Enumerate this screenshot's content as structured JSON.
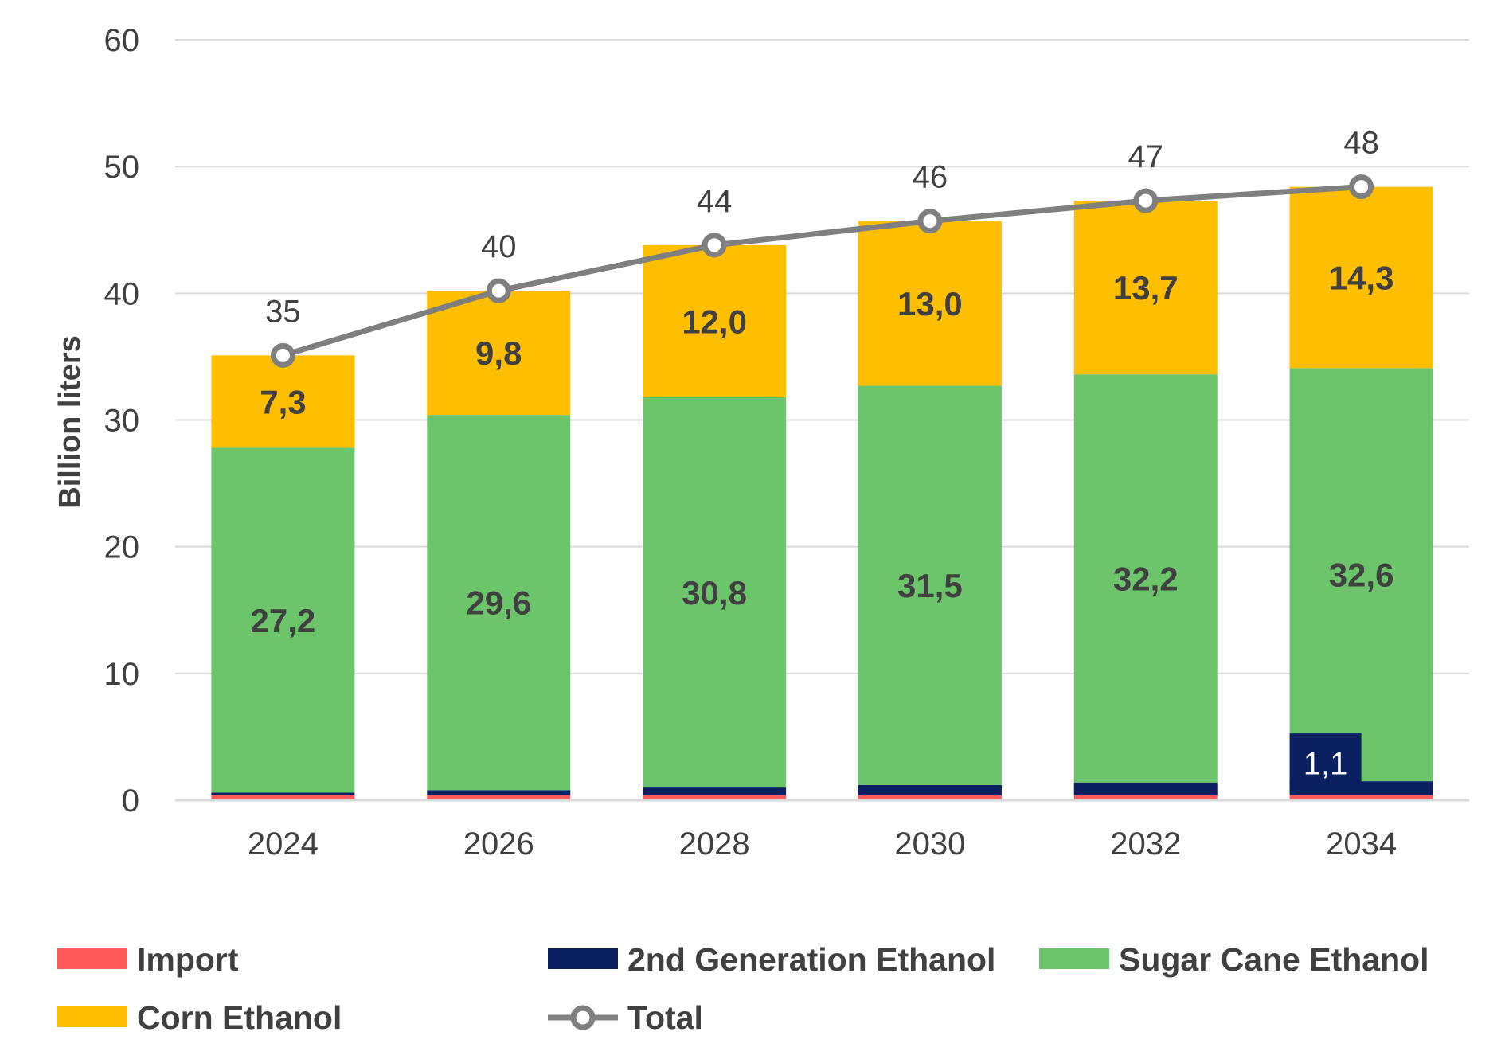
{
  "chart_data": {
    "type": "bar",
    "stacked": true,
    "categories": [
      "2024",
      "2026",
      "2028",
      "2030",
      "2032",
      "2034"
    ],
    "ylabel": "Billion liters",
    "xlabel": "",
    "ylim": [
      0,
      60
    ],
    "yticks": [
      "0",
      "10",
      "20",
      "30",
      "40",
      "50",
      "60"
    ],
    "grid": true,
    "legend_position": "bottom",
    "series": [
      {
        "name": "Import",
        "color": "#ff5b5b",
        "values": [
          0.4,
          0.4,
          0.4,
          0.4,
          0.4,
          0.4
        ],
        "labels": [
          "",
          "",
          "",
          "",
          "",
          ""
        ]
      },
      {
        "name": "2nd Generation Ethanol",
        "color": "#0b2060",
        "values": [
          0.2,
          0.4,
          0.6,
          0.8,
          1.0,
          1.1
        ],
        "labels": [
          "",
          "",
          "",
          "",
          "",
          "1,1"
        ]
      },
      {
        "name": "Sugar Cane Ethanol",
        "color": "#6cc56a",
        "values": [
          27.2,
          29.6,
          30.8,
          31.5,
          32.2,
          32.6
        ],
        "labels": [
          "27,2",
          "29,6",
          "30,8",
          "31,5",
          "32,2",
          "32,6"
        ]
      },
      {
        "name": "Corn Ethanol",
        "color": "#ffbf00",
        "values": [
          7.3,
          9.8,
          12.0,
          13.0,
          13.7,
          14.3
        ],
        "labels": [
          "7,3",
          "9,8",
          "12,0",
          "13,0",
          "13,7",
          "14,3"
        ]
      }
    ],
    "total": {
      "name": "Total",
      "color": "#7f7f7f",
      "values": [
        35.1,
        40.2,
        43.8,
        45.7,
        47.3,
        48.4
      ],
      "labels": [
        "35",
        "40",
        "44",
        "46",
        "47",
        "48"
      ]
    }
  }
}
